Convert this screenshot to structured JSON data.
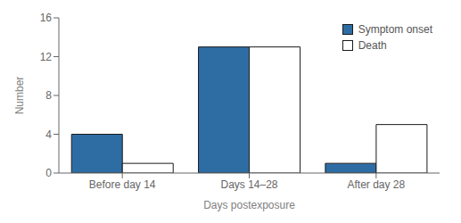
{
  "chart_data": {
    "type": "bar",
    "categories": [
      "Before day 14",
      "Days 14–28",
      "After day 28"
    ],
    "series": [
      {
        "name": "Symptom onset",
        "color": "#2e6da4",
        "values": [
          4,
          13,
          1
        ]
      },
      {
        "name": "Death",
        "color": "#ffffff",
        "values": [
          1,
          13,
          5
        ]
      }
    ],
    "xlabel": "Days postexposure",
    "ylabel": "Number",
    "ylim": [
      0,
      16
    ],
    "yticks": [
      0,
      4,
      8,
      12,
      16
    ],
    "grid": false,
    "legend": "upper right"
  }
}
